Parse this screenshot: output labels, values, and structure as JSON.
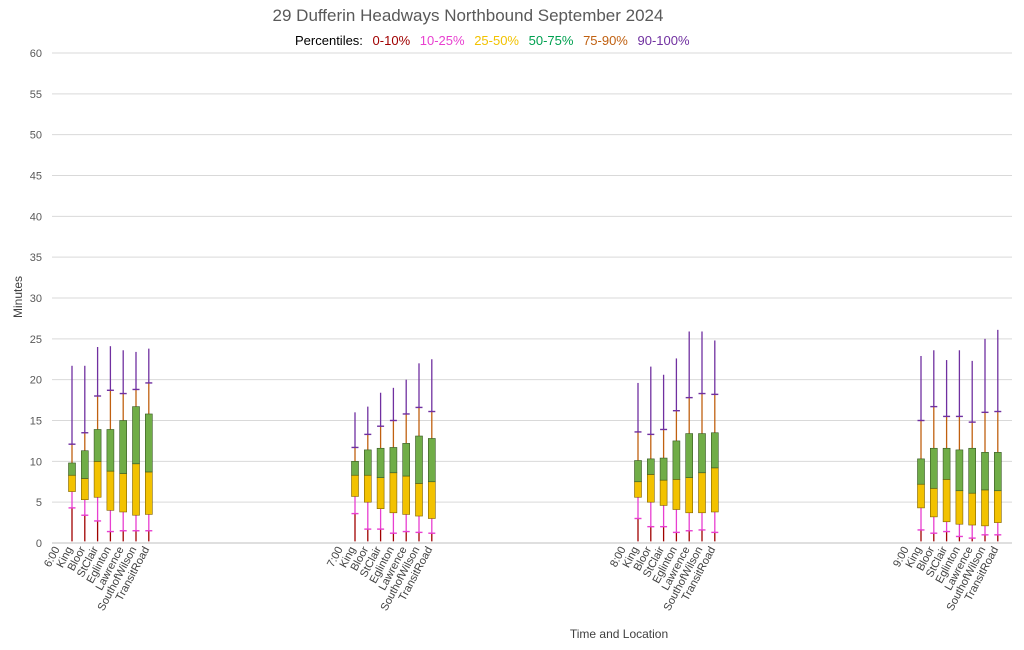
{
  "title": "29 Dufferin Headways Northbound September 2024",
  "legend": {
    "title": "Percentiles:",
    "items": [
      {
        "label": "0-10%",
        "color": "#a00000"
      },
      {
        "label": "10-25%",
        "color": "#e83fd0"
      },
      {
        "label": "25-50%",
        "color": "#f2c200"
      },
      {
        "label": "50-75%",
        "color": "#00a050"
      },
      {
        "label": "75-90%",
        "color": "#c06010"
      },
      {
        "label": "90-100%",
        "color": "#7030a0"
      }
    ]
  },
  "colors": {
    "p0_10": "#a00000",
    "p10_25": "#e83fd0",
    "p25_50": "#f2c200",
    "p50_75": "#70ad47",
    "p75_90": "#c06010",
    "p90_100": "#7030a0",
    "grid": "#d9d9d9"
  },
  "chart_data": {
    "type": "box",
    "title": "29 Dufferin Headways Northbound September 2024",
    "xlabel": "Time and Location",
    "ylabel": "Minutes",
    "ylim": [
      0,
      60
    ],
    "yticks": [
      0,
      5,
      10,
      15,
      20,
      25,
      30,
      35,
      40,
      45,
      50,
      55,
      60
    ],
    "grid": true,
    "legend_position": "top",
    "groups": [
      {
        "label": "6:00",
        "items": [
          {
            "label": "King",
            "min": 0.2,
            "p10": 4.3,
            "p25": 6.3,
            "p50": 8.3,
            "p75": 9.8,
            "p90": 12.1,
            "max": 21.7
          },
          {
            "label": "Bloor",
            "min": 0.2,
            "p10": 3.4,
            "p25": 5.3,
            "p50": 7.9,
            "p75": 11.3,
            "p90": 13.5,
            "max": 21.7
          },
          {
            "label": "StClair",
            "min": 0.2,
            "p10": 2.7,
            "p25": 5.6,
            "p50": 10.0,
            "p75": 13.9,
            "p90": 18.0,
            "max": 24.0
          },
          {
            "label": "Eglinton",
            "min": 0.2,
            "p10": 1.4,
            "p25": 4.0,
            "p50": 8.8,
            "p75": 13.9,
            "p90": 18.7,
            "max": 24.1
          },
          {
            "label": "Lawrence",
            "min": 0.2,
            "p10": 1.5,
            "p25": 3.8,
            "p50": 8.5,
            "p75": 15.0,
            "p90": 18.3,
            "max": 23.6
          },
          {
            "label": "SouthofWilson",
            "min": 0.2,
            "p10": 1.5,
            "p25": 3.4,
            "p50": 9.7,
            "p75": 16.7,
            "p90": 18.8,
            "max": 23.4
          },
          {
            "label": "TransitRoad",
            "min": 0.2,
            "p10": 1.5,
            "p25": 3.5,
            "p50": 8.7,
            "p75": 15.8,
            "p90": 19.6,
            "max": 23.8
          }
        ]
      },
      {
        "label": "7:00",
        "items": [
          {
            "label": "King",
            "min": 0.2,
            "p10": 3.6,
            "p25": 5.7,
            "p50": 8.3,
            "p75": 10.0,
            "p90": 11.7,
            "max": 16.0
          },
          {
            "label": "Bloor",
            "min": 0.2,
            "p10": 1.7,
            "p25": 5.0,
            "p50": 8.3,
            "p75": 11.4,
            "p90": 13.3,
            "max": 16.7
          },
          {
            "label": "StClair",
            "min": 0.2,
            "p10": 1.7,
            "p25": 4.2,
            "p50": 8.0,
            "p75": 11.6,
            "p90": 14.3,
            "max": 18.4
          },
          {
            "label": "Eglinton",
            "min": 0.2,
            "p10": 1.2,
            "p25": 3.7,
            "p50": 8.6,
            "p75": 11.7,
            "p90": 15.0,
            "max": 19.0
          },
          {
            "label": "Lawrence",
            "min": 0.2,
            "p10": 1.4,
            "p25": 3.5,
            "p50": 8.2,
            "p75": 12.2,
            "p90": 15.8,
            "max": 20.0
          },
          {
            "label": "SouthofWilson",
            "min": 0.2,
            "p10": 1.3,
            "p25": 3.3,
            "p50": 7.3,
            "p75": 13.1,
            "p90": 16.6,
            "max": 22.0
          },
          {
            "label": "TransitRoad",
            "min": 0.2,
            "p10": 1.2,
            "p25": 3.0,
            "p50": 7.5,
            "p75": 12.8,
            "p90": 16.1,
            "max": 22.5
          }
        ]
      },
      {
        "label": "8:00",
        "items": [
          {
            "label": "King",
            "min": 0.2,
            "p10": 3.0,
            "p25": 5.6,
            "p50": 7.5,
            "p75": 10.1,
            "p90": 13.6,
            "max": 19.6
          },
          {
            "label": "Bloor",
            "min": 0.2,
            "p10": 2.0,
            "p25": 5.0,
            "p50": 8.4,
            "p75": 10.3,
            "p90": 13.3,
            "max": 21.6
          },
          {
            "label": "StClair",
            "min": 0.2,
            "p10": 2.0,
            "p25": 4.6,
            "p50": 7.7,
            "p75": 10.4,
            "p90": 13.9,
            "max": 20.6
          },
          {
            "label": "Eglinton",
            "min": 0.2,
            "p10": 1.3,
            "p25": 4.1,
            "p50": 7.8,
            "p75": 12.5,
            "p90": 16.2,
            "max": 22.6
          },
          {
            "label": "Lawrence",
            "min": 0.2,
            "p10": 1.5,
            "p25": 3.7,
            "p50": 8.0,
            "p75": 13.4,
            "p90": 17.8,
            "max": 25.9
          },
          {
            "label": "SouthofWilson",
            "min": 0.2,
            "p10": 1.6,
            "p25": 3.7,
            "p50": 8.6,
            "p75": 13.4,
            "p90": 18.3,
            "max": 25.9
          },
          {
            "label": "TransitRoad",
            "min": 0.2,
            "p10": 1.3,
            "p25": 3.8,
            "p50": 9.2,
            "p75": 13.5,
            "p90": 18.2,
            "max": 24.8
          }
        ]
      },
      {
        "label": "9:00",
        "items": [
          {
            "label": "King",
            "min": 0.2,
            "p10": 1.6,
            "p25": 4.3,
            "p50": 7.2,
            "p75": 10.3,
            "p90": 15.0,
            "max": 22.9
          },
          {
            "label": "Bloor",
            "min": 0.2,
            "p10": 1.2,
            "p25": 3.2,
            "p50": 6.7,
            "p75": 11.6,
            "p90": 16.7,
            "max": 23.6
          },
          {
            "label": "StClair",
            "min": 0.2,
            "p10": 1.4,
            "p25": 2.6,
            "p50": 7.8,
            "p75": 11.6,
            "p90": 15.5,
            "max": 22.4
          },
          {
            "label": "Eglinton",
            "min": 0.2,
            "p10": 0.8,
            "p25": 2.3,
            "p50": 6.4,
            "p75": 11.4,
            "p90": 15.5,
            "max": 23.6
          },
          {
            "label": "Lawrence",
            "min": 0.2,
            "p10": 0.6,
            "p25": 2.2,
            "p50": 6.1,
            "p75": 11.6,
            "p90": 14.8,
            "max": 22.3
          },
          {
            "label": "SouthofWilson",
            "min": 0.2,
            "p10": 1.0,
            "p25": 2.1,
            "p50": 6.5,
            "p75": 11.1,
            "p90": 16.0,
            "max": 25.0
          },
          {
            "label": "TransitRoad",
            "min": 0.2,
            "p10": 1.0,
            "p25": 2.5,
            "p50": 6.4,
            "p75": 11.1,
            "p90": 16.1,
            "max": 26.1
          }
        ]
      }
    ]
  }
}
